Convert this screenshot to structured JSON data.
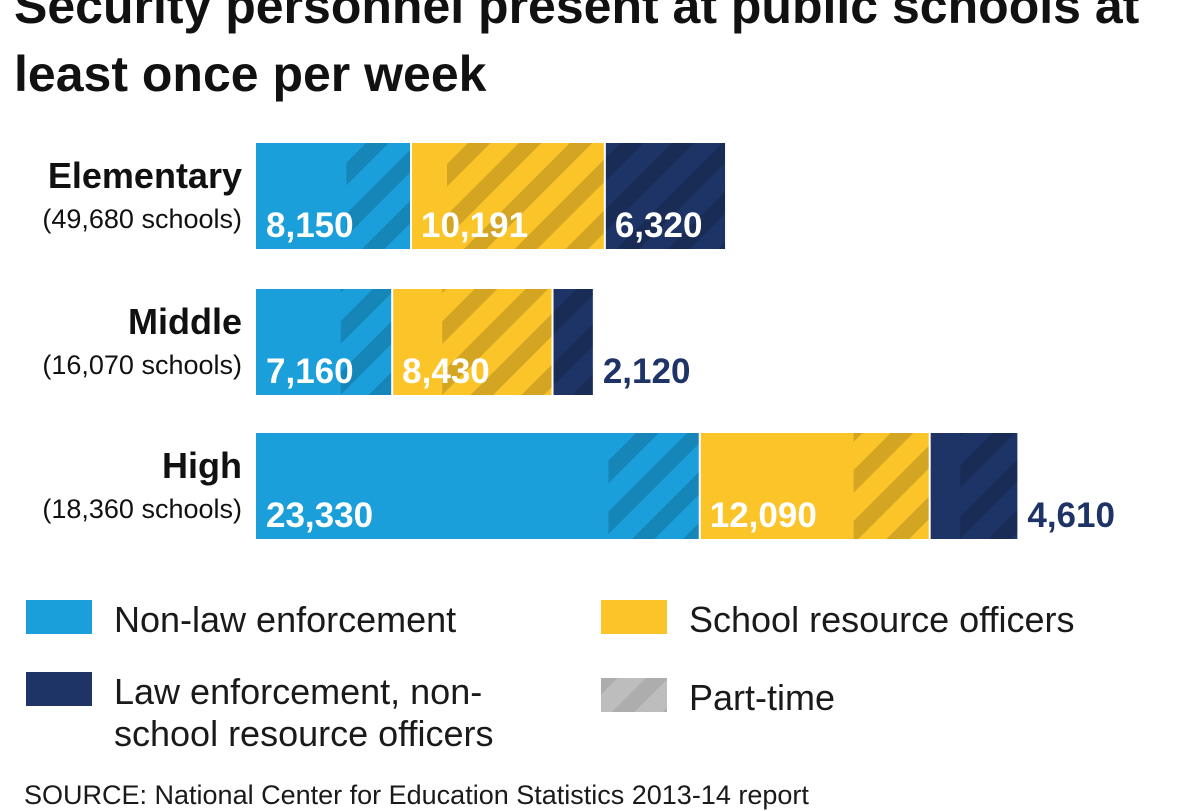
{
  "chart_data": {
    "type": "bar",
    "orientation": "horizontal",
    "stacked": true,
    "title": "Security personnel present at public schools at least once per week",
    "categories": [
      {
        "name": "Elementary",
        "subtitle": "(49,680 schools)"
      },
      {
        "name": "Middle",
        "subtitle": "(16,070 schools)"
      },
      {
        "name": "High",
        "subtitle": "(18,360 schools)"
      }
    ],
    "series": [
      {
        "name": "Non-law enforcement",
        "color": "#1a9fdb",
        "values": [
          8150,
          7160,
          23330
        ],
        "labels": [
          "8,150",
          "7,160",
          "23,330"
        ],
        "part_time_values": [
          3400,
          2700,
          4800
        ]
      },
      {
        "name": "School resource officers",
        "color": "#fbc52a",
        "values": [
          10191,
          8430,
          12090
        ],
        "labels": [
          "10,191",
          "8,430",
          "12,090"
        ],
        "part_time_values": [
          8300,
          5800,
          4000
        ]
      },
      {
        "name": "Law enforcement, non-school resource officers",
        "legend_lines": [
          "Law enforcement, non-",
          "school resource officers"
        ],
        "color": "#1e3466",
        "values": [
          6320,
          2120,
          4610
        ],
        "labels": [
          "6,320",
          "2,120",
          "4,610"
        ],
        "part_time_values": [
          6320,
          2120,
          3000
        ]
      }
    ],
    "part_time_legend": "Part-time",
    "xlabel": "",
    "ylabel": "",
    "grid": false,
    "legend_position": "bottom",
    "source": "SOURCE: National Center for Education Statistics 2013-14 report"
  }
}
